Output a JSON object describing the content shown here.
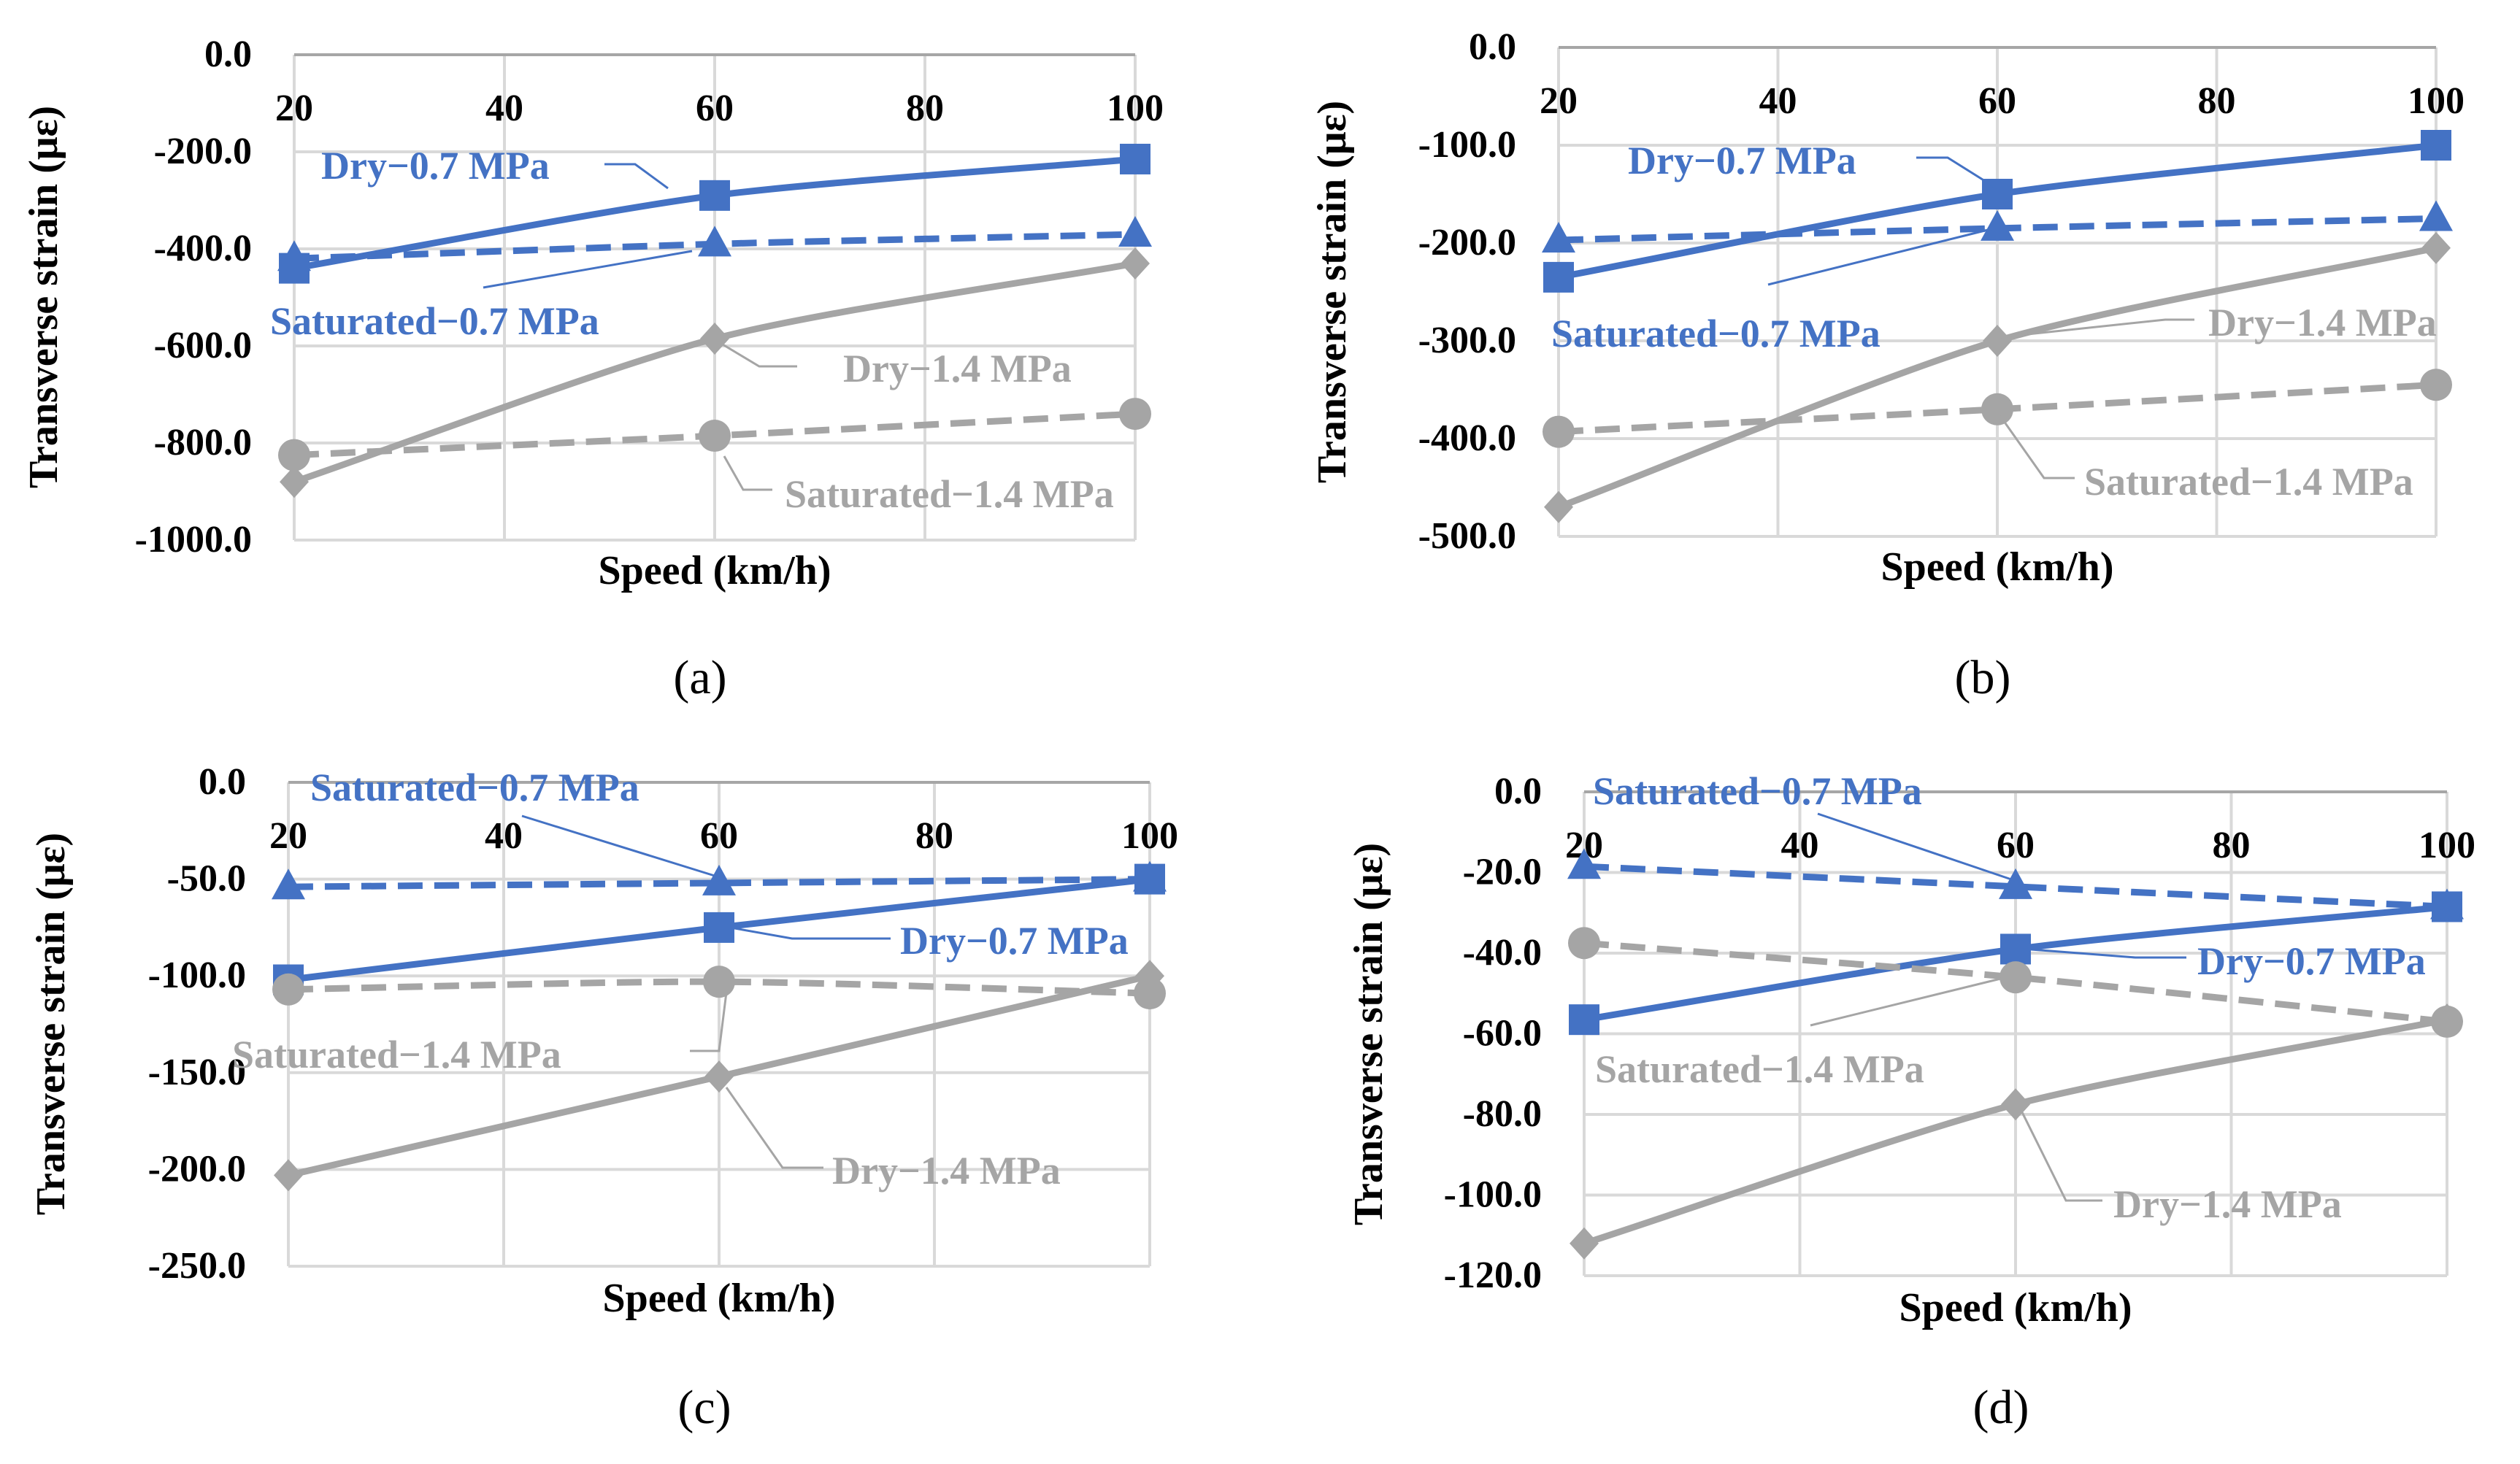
{
  "colors": {
    "blue": "#4472C4",
    "gray": "#A5A5A5"
  },
  "chart_data": [
    {
      "type": "line",
      "panel_label": "(a)",
      "xlabel": "Speed (km/h)",
      "ylabel": "Transverse strain (με)",
      "x_ticks": [
        "20",
        "40",
        "60",
        "80",
        "100"
      ],
      "y_ticks": [
        "0.0",
        "-200.0",
        "-400.0",
        "-600.0",
        "-800.0",
        "-1000.0"
      ],
      "ylim": [
        -1000,
        0
      ],
      "xlim": [
        20,
        100
      ],
      "x": [
        20,
        60,
        100
      ],
      "series": [
        {
          "name": "Dry−0.7 MPa",
          "values": [
            -440,
            -290,
            -215
          ],
          "color": "blue",
          "dash": false,
          "marker": "square"
        },
        {
          "name": "Saturated−0.7 MPa",
          "values": [
            -420,
            -390,
            -370
          ],
          "color": "blue",
          "dash": true,
          "marker": "triangle"
        },
        {
          "name": "Dry−1.4 MPa",
          "values": [
            -880,
            -585,
            -430
          ],
          "color": "gray",
          "dash": false,
          "marker": "diamond"
        },
        {
          "name": "Saturated−1.4 MPa",
          "values": [
            -825,
            -785,
            -740
          ],
          "color": "gray",
          "dash": true,
          "marker": "circle"
        }
      ]
    },
    {
      "type": "line",
      "panel_label": "(b)",
      "xlabel": "Speed (km/h)",
      "ylabel": "Transverse strain (με)",
      "x_ticks": [
        "20",
        "40",
        "60",
        "80",
        "100"
      ],
      "y_ticks": [
        "0.0",
        "-100.0",
        "-200.0",
        "-300.0",
        "-400.0",
        "-500.0"
      ],
      "ylim": [
        -500,
        0
      ],
      "xlim": [
        20,
        100
      ],
      "x": [
        20,
        60,
        100
      ],
      "series": [
        {
          "name": "Dry−0.7 MPa",
          "values": [
            -235,
            -150,
            -100
          ],
          "color": "blue",
          "dash": false,
          "marker": "square"
        },
        {
          "name": "Saturated−0.7 MPa",
          "values": [
            -197,
            -185,
            -175
          ],
          "color": "blue",
          "dash": true,
          "marker": "triangle"
        },
        {
          "name": "Dry−1.4 MPa",
          "values": [
            -470,
            -300,
            -205
          ],
          "color": "gray",
          "dash": false,
          "marker": "diamond"
        },
        {
          "name": "Saturated−1.4 MPa",
          "values": [
            -393,
            -370,
            -345
          ],
          "color": "gray",
          "dash": true,
          "marker": "circle"
        }
      ]
    },
    {
      "type": "line",
      "panel_label": "(c)",
      "xlabel": "Speed (km/h)",
      "ylabel": "Transverse strain (με)",
      "x_ticks": [
        "20",
        "40",
        "60",
        "80",
        "100"
      ],
      "y_ticks": [
        "0.0",
        "-50.0",
        "-100.0",
        "-150.0",
        "-200.0",
        "-250.0"
      ],
      "ylim": [
        -250,
        0
      ],
      "xlim": [
        20,
        100
      ],
      "x": [
        20,
        60,
        100
      ],
      "series": [
        {
          "name": "Saturated−0.7 MPa",
          "values": [
            -54,
            -52,
            -50
          ],
          "color": "blue",
          "dash": true,
          "marker": "triangle"
        },
        {
          "name": "Dry−0.7 MPa",
          "values": [
            -102,
            -75,
            -50
          ],
          "color": "blue",
          "dash": false,
          "marker": "square"
        },
        {
          "name": "Saturated−1.4 MPa",
          "values": [
            -107,
            -103,
            -109
          ],
          "color": "gray",
          "dash": true,
          "marker": "circle"
        },
        {
          "name": "Dry−1.4 MPa",
          "values": [
            -203,
            -152,
            -100
          ],
          "color": "gray",
          "dash": false,
          "marker": "diamond"
        }
      ]
    },
    {
      "type": "line",
      "panel_label": "(d)",
      "xlabel": "Speed (km/h)",
      "ylabel": "Transverse strain (με)",
      "x_ticks": [
        "20",
        "40",
        "60",
        "80",
        "100"
      ],
      "y_ticks": [
        "0.0",
        "-20.0",
        "-40.0",
        "-60.0",
        "-80.0",
        "-100.0",
        "-120.0"
      ],
      "ylim": [
        -120,
        0
      ],
      "xlim": [
        20,
        100
      ],
      "x": [
        20,
        60,
        100
      ],
      "series": [
        {
          "name": "Saturated−0.7 MPa",
          "values": [
            -18.5,
            -23.5,
            -28.5
          ],
          "color": "blue",
          "dash": true,
          "marker": "triangle"
        },
        {
          "name": "Dry−0.7 MPa",
          "values": [
            -56.5,
            -39,
            -28.5
          ],
          "color": "blue",
          "dash": false,
          "marker": "square"
        },
        {
          "name": "Saturated−1.4 MPa",
          "values": [
            -37.5,
            -46,
            -57
          ],
          "color": "gray",
          "dash": true,
          "marker": "circle"
        },
        {
          "name": "Dry−1.4 MPa",
          "values": [
            -112,
            -77.5,
            -56.5
          ],
          "color": "gray",
          "dash": false,
          "marker": "diamond"
        }
      ]
    }
  ]
}
